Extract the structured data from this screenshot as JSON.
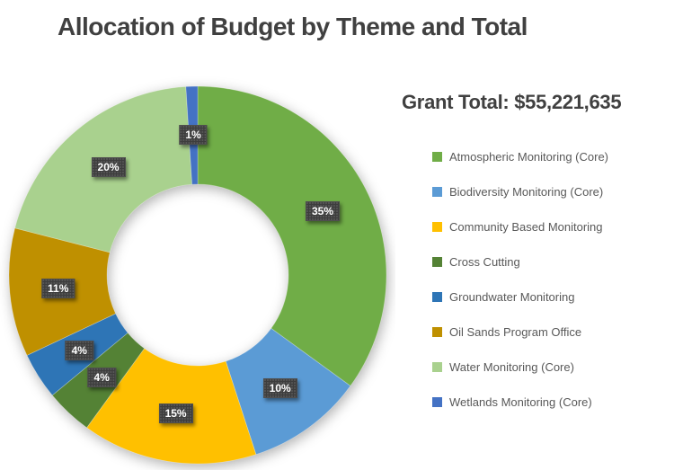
{
  "title": "Allocation of Budget by Theme and Total",
  "grant_total": "Grant Total: $55,221,635",
  "chart_data": {
    "type": "pie",
    "subtype": "donut",
    "title": "Allocation of Budget by Theme and Total",
    "annotation": "Grant Total: $55,221,635",
    "categories": [
      "Atmospheric Monitoring (Core)",
      "Biodiversity Monitoring (Core)",
      "Community Based Monitoring",
      "Cross Cutting",
      "Groundwater Monitoring",
      "Oil Sands Program Office",
      "Water Monitoring (Core)",
      "Wetlands Monitoring (Core)"
    ],
    "values": [
      35,
      10,
      15,
      4,
      4,
      11,
      20,
      1
    ],
    "percent_labels": [
      "35%",
      "10%",
      "15%",
      "4%",
      "4%",
      "11%",
      "20%",
      "1%"
    ],
    "colors": [
      "#70AD47",
      "#5B9BD5",
      "#FFC000",
      "#548235",
      "#2E75B6",
      "#BF9000",
      "#A9D18E",
      "#4472C4"
    ],
    "start_angle_deg": 0,
    "direction": "clockwise",
    "inner_radius_ratio": 0.48,
    "legend_position": "right",
    "data_label_style": {
      "fill": "#3d3d3d",
      "text_color": "#ffffff",
      "texture": "dotted"
    }
  }
}
